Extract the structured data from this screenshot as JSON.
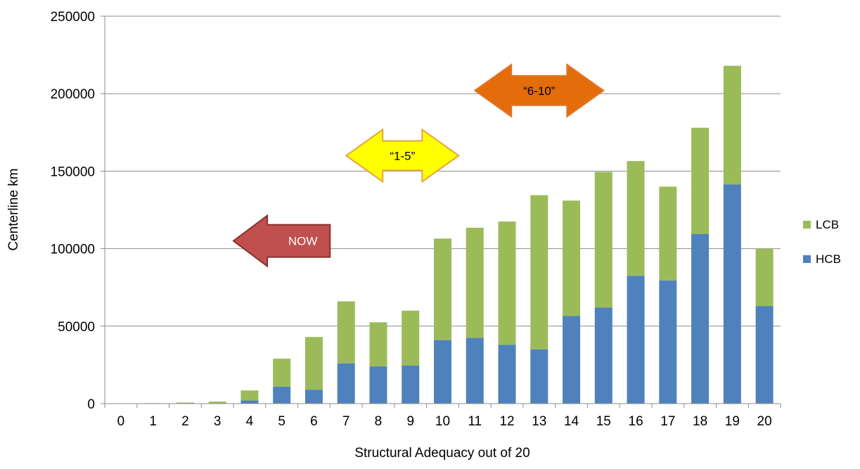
{
  "chart_data": {
    "type": "bar",
    "stacked": true,
    "title": "",
    "xlabel": "Structural Adequacy out of 20",
    "ylabel": "Centerline km",
    "categories": [
      "0",
      "1",
      "2",
      "3",
      "4",
      "5",
      "6",
      "7",
      "8",
      "9",
      "10",
      "11",
      "12",
      "13",
      "14",
      "15",
      "16",
      "17",
      "18",
      "19",
      "20"
    ],
    "ylim": [
      0,
      250000
    ],
    "yticks": [
      0,
      50000,
      100000,
      150000,
      200000,
      250000
    ],
    "grid": true,
    "legend_position": "right",
    "series": [
      {
        "name": "HCB",
        "color": "#4F81BD",
        "values": [
          0,
          0,
          0,
          0,
          2000,
          11000,
          9000,
          26000,
          24000,
          24500,
          41000,
          42500,
          38000,
          35000,
          56500,
          62000,
          82500,
          79500,
          109500,
          141500,
          63000
        ]
      },
      {
        "name": "LCB",
        "color": "#9BBB59",
        "values": [
          0,
          300,
          700,
          1300,
          6500,
          18000,
          34000,
          40000,
          28500,
          35500,
          65500,
          71000,
          79500,
          99500,
          74500,
          87500,
          74000,
          60500,
          68500,
          76500,
          37000
        ]
      }
    ],
    "annotations": [
      {
        "text": "NOW",
        "shape": "left-arrow",
        "color": "#C0504D",
        "x_range": [
          4,
          7
        ],
        "y": 105000
      },
      {
        "text": "“1-5”",
        "shape": "double-arrow",
        "color": "#FFFF00",
        "x_range": [
          7.5,
          11
        ],
        "y": 160000
      },
      {
        "text": "“6-10”",
        "shape": "double-arrow",
        "color": "#E46C0A",
        "x_range": [
          11.5,
          15.5
        ],
        "y": 202000
      }
    ]
  }
}
